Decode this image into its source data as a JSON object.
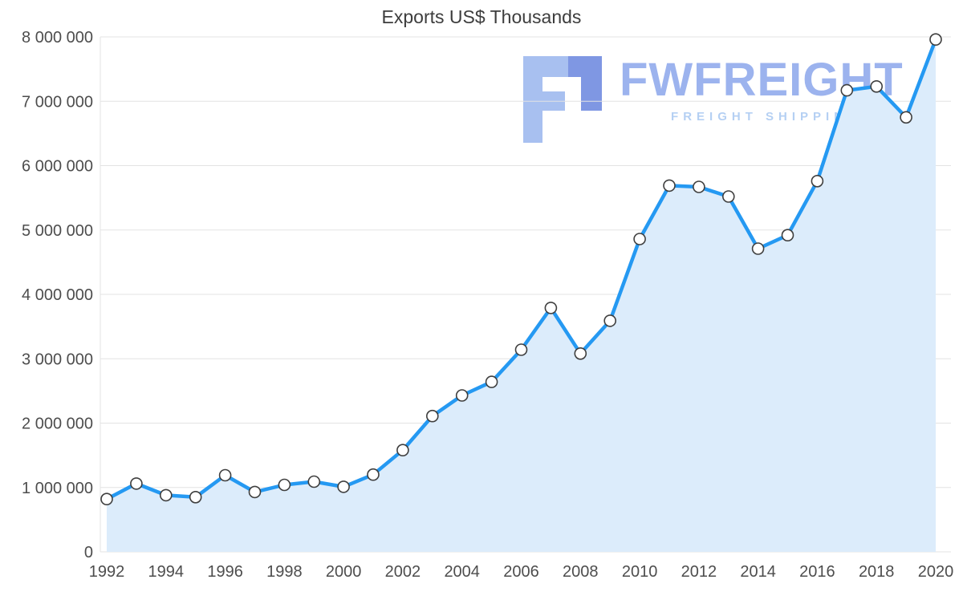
{
  "title": "Exports US$ Thousands",
  "watermark": {
    "brand": "FWFREIGHT",
    "tagline": "FREIGHT SHIPPING"
  },
  "chart_data": {
    "type": "area",
    "title": "Exports US$ Thousands",
    "x": [
      1992,
      1993,
      1994,
      1995,
      1996,
      1997,
      1998,
      1999,
      2000,
      2001,
      2002,
      2003,
      2004,
      2005,
      2006,
      2007,
      2008,
      2009,
      2010,
      2011,
      2012,
      2013,
      2014,
      2015,
      2016,
      2017,
      2018,
      2019,
      2020
    ],
    "values": [
      820000,
      1060000,
      880000,
      850000,
      1190000,
      930000,
      1040000,
      1090000,
      1010000,
      1200000,
      1580000,
      2110000,
      2430000,
      2640000,
      3140000,
      3790000,
      3080000,
      3590000,
      4860000,
      5690000,
      5670000,
      5520000,
      4710000,
      4920000,
      5760000,
      7170000,
      7230000,
      6750000,
      7960000
    ],
    "ylim": [
      0,
      8000000
    ],
    "y_tick_step": 1000000,
    "y_tick_labels": [
      "0",
      "1 000 000",
      "2 000 000",
      "3 000 000",
      "4 000 000",
      "5 000 000",
      "6 000 000",
      "7 000 000",
      "8 000 000"
    ],
    "x_tick_every": 2,
    "grid": true,
    "legend": "none",
    "colors": {
      "line": "#2599f2",
      "area": "#dcecfb",
      "marker_fill": "#ffffff",
      "marker_stroke": "#3f3f3f",
      "grid": "#e3e3e3",
      "axis_text": "#4d4d4d",
      "title_text": "#3d3d3d",
      "watermark_brand": "#8ba6ec",
      "watermark_tagline": "#b5d0f3",
      "logo_light": "#a8c0f0",
      "logo_dark": "#7f97e3"
    }
  }
}
